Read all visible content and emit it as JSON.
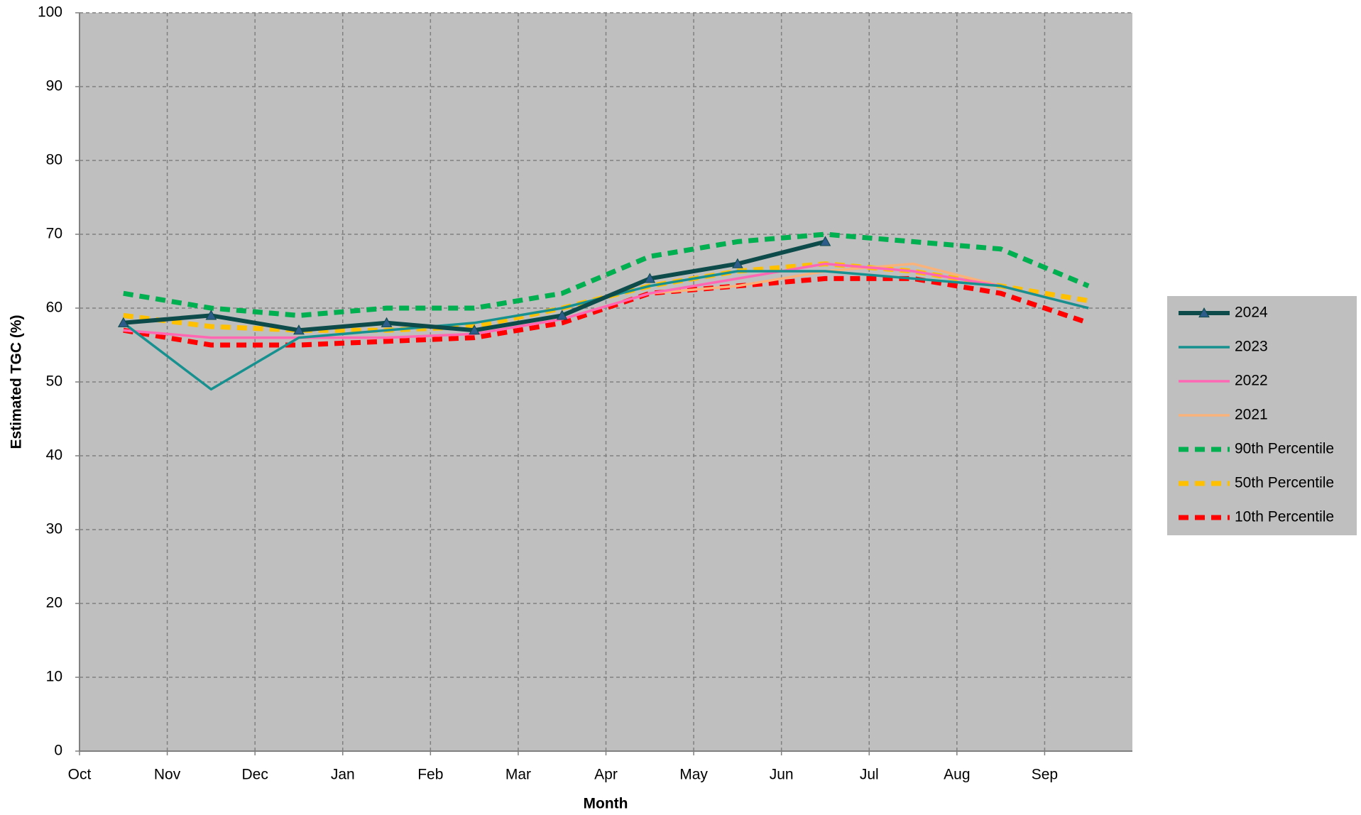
{
  "chart_data": {
    "type": "line",
    "x_label": "Month",
    "y_label": "Estimated TGC (%)",
    "categories": [
      "Oct",
      "Nov",
      "Dec",
      "Jan",
      "Feb",
      "Mar",
      "Apr",
      "May",
      "Jun",
      "Jul",
      "Aug",
      "Sep"
    ],
    "series": [
      {
        "name": "2024",
        "color": "#0d4a4a",
        "marker": "triangle",
        "marker_color": "#2e5c8a",
        "values": [
          58,
          59,
          57,
          58,
          57,
          59,
          64,
          66,
          69,
          null,
          null,
          null
        ]
      },
      {
        "name": "2023",
        "color": "#17918f",
        "values": [
          58,
          49,
          56,
          57,
          58,
          60,
          63,
          65,
          65,
          64,
          63,
          60
        ]
      },
      {
        "name": "2022",
        "color": "#ff66b3",
        "values": [
          57,
          56,
          56,
          56,
          56.5,
          58.5,
          62,
          64,
          66,
          65,
          63,
          60
        ]
      },
      {
        "name": "2021",
        "color": "#fab27b",
        "values": [
          57,
          56,
          56,
          56,
          56.5,
          58.5,
          62,
          63,
          65,
          66,
          63,
          60
        ]
      },
      {
        "name": "90th Percentile",
        "color": "#00b050",
        "dashed": true,
        "values": [
          62,
          60,
          59,
          60,
          60,
          62,
          67,
          69,
          70,
          69,
          68,
          63
        ]
      },
      {
        "name": "50th Percentile",
        "color": "#ffc000",
        "dashed": true,
        "values": [
          59,
          57.5,
          57,
          57,
          57.5,
          60,
          63,
          65,
          66,
          65,
          63,
          61
        ]
      },
      {
        "name": "10th Percentile",
        "color": "#ff0000",
        "dashed": true,
        "values": [
          57,
          55,
          55,
          55.5,
          56,
          58,
          62,
          63,
          64,
          64,
          62,
          58
        ]
      }
    ],
    "ylim": [
      0,
      100
    ],
    "yticks": [
      0,
      10,
      20,
      30,
      40,
      50,
      60,
      70,
      80,
      90,
      100
    ],
    "grid": true,
    "legend": "right",
    "plot_background": "#bfbfbf"
  }
}
